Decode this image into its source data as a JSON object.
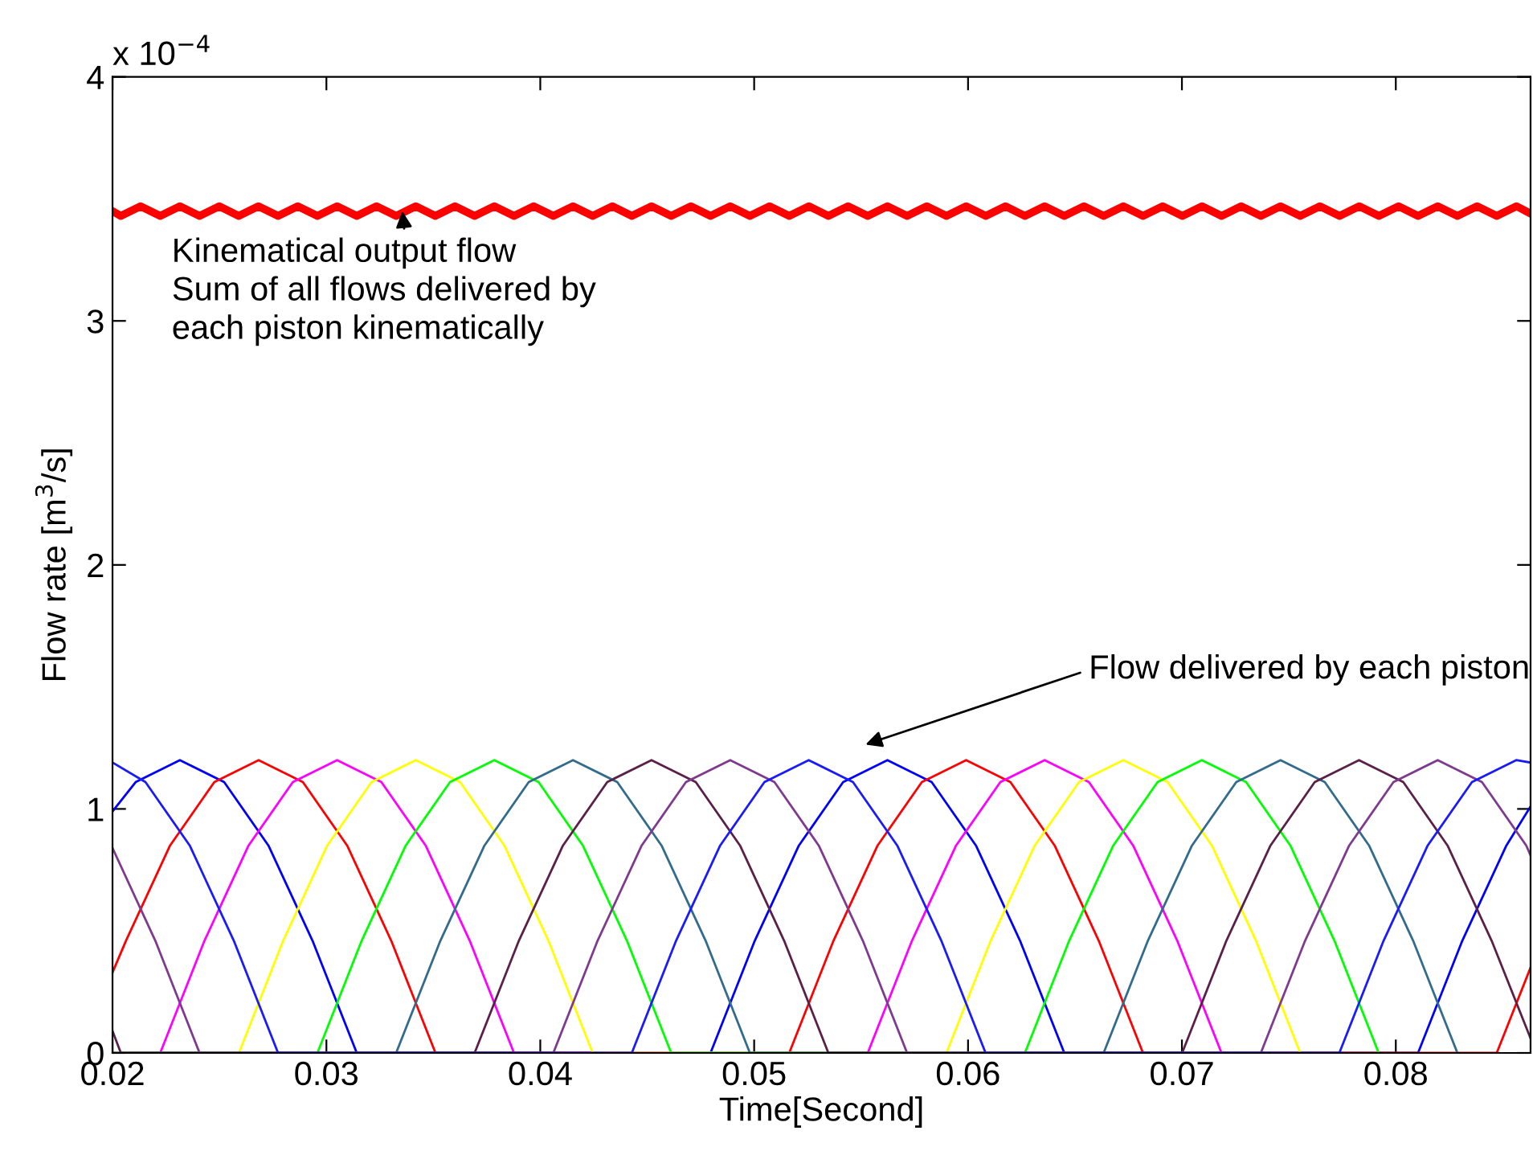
{
  "chart_data": {
    "type": "line",
    "xlabel": "Time[Second]",
    "ylabel": "Flow rate [m$^{3}$/s]",
    "xlim": [
      0.02,
      0.0863
    ],
    "xticks": [
      0.02,
      0.03,
      0.04,
      0.05,
      0.06,
      0.07,
      0.08
    ],
    "ylim": [
      0,
      4
    ],
    "yticks": [
      0,
      1,
      2,
      3,
      4
    ],
    "grid": false,
    "legend": false,
    "marker": "none",
    "line_style": "solid",
    "annotations": [
      "x 10$^{−4}$",
      {
        "text": "Kinematical output flow\nSum of all flows delivered by\neach piston kinematically",
        "x": 0.03355,
        "y": 3.45
      },
      "Flow delivered by each piston"
    ],
    "series": [
      {
        "color": "#ff0000",
        "x": [
          0.02,
          0.02039,
          0.02131,
          0.02223,
          0.02315,
          0.02407,
          0.02499,
          0.0259,
          0.02682,
          0.02774,
          0.02866,
          0.02958,
          0.0305,
          0.03142,
          0.03234,
          0.03326,
          0.03418,
          0.03509,
          0.03601,
          0.03693,
          0.03785,
          0.03877,
          0.03969,
          0.04061,
          0.04153,
          0.04245,
          0.04337,
          0.04428,
          0.0452,
          0.04612,
          0.04704,
          0.04796,
          0.04888,
          0.0498,
          0.05072,
          0.05164,
          0.05256,
          0.05347,
          0.05439,
          0.05531,
          0.05623,
          0.05715,
          0.05807,
          0.05899,
          0.05991,
          0.06083,
          0.06175,
          0.06266,
          0.06358,
          0.0645,
          0.06542,
          0.06634,
          0.06726,
          0.06818,
          0.0691,
          0.07002,
          0.07094,
          0.07185,
          0.07277,
          0.07369,
          0.07461,
          0.07553,
          0.07645,
          0.07737,
          0.07829,
          0.07921,
          0.08013,
          0.08104,
          0.08196,
          0.08288,
          0.0838,
          0.08472,
          0.08564,
          0.0863
        ],
        "values": [
          3.45,
          3.43,
          3.47,
          3.43,
          3.47,
          3.43,
          3.47,
          3.43,
          3.47,
          3.43,
          3.47,
          3.43,
          3.47,
          3.43,
          3.47,
          3.43,
          3.47,
          3.43,
          3.47,
          3.43,
          3.47,
          3.43,
          3.47,
          3.43,
          3.47,
          3.43,
          3.47,
          3.43,
          3.47,
          3.43,
          3.47,
          3.43,
          3.47,
          3.43,
          3.47,
          3.43,
          3.47,
          3.43,
          3.47,
          3.43,
          3.47,
          3.43,
          3.47,
          3.43,
          3.47,
          3.43,
          3.47,
          3.43,
          3.47,
          3.43,
          3.47,
          3.43,
          3.47,
          3.43,
          3.47,
          3.43,
          3.47,
          3.43,
          3.47,
          3.43,
          3.47,
          3.43,
          3.47,
          3.43,
          3.47,
          3.43,
          3.47,
          3.43,
          3.47,
          3.43,
          3.47,
          3.43,
          3.47,
          3.44
        ]
      },
      {
        "color": "#0000ff",
        "x": [
          0.02,
          0.02108,
          0.02315,
          0.02522,
          0.02729,
          0.02935,
          0.03142,
          0.04796,
          0.05003,
          0.05209,
          0.05416,
          0.05623,
          0.0583,
          0.06037,
          0.06243,
          0.0645,
          0.08104,
          0.08311,
          0.08517,
          0.0863
        ],
        "values": [
          0.99,
          1.11,
          1.2,
          1.11,
          0.85,
          0.46,
          0,
          0,
          0.46,
          0.85,
          1.11,
          1.2,
          1.11,
          0.85,
          0.46,
          0,
          0,
          0.46,
          0.85,
          1.01
        ]
      },
      {
        "color": "#ff0000",
        "x": [
          0.02,
          0.02063,
          0.02269,
          0.02476,
          0.02683,
          0.0289,
          0.03097,
          0.03303,
          0.0351,
          0.05164,
          0.05371,
          0.05577,
          0.05784,
          0.05991,
          0.06198,
          0.06405,
          0.06611,
          0.06818,
          0.08472,
          0.0863
        ],
        "values": [
          0.33,
          0.46,
          0.85,
          1.11,
          1.2,
          1.11,
          0.85,
          0.46,
          0,
          0,
          0.46,
          0.85,
          1.11,
          1.2,
          1.11,
          0.85,
          0.46,
          0,
          0,
          0.35
        ]
      },
      {
        "color": "#ff00ff",
        "x": [
          0.02,
          0.02223,
          0.0243,
          0.02636,
          0.02843,
          0.0305,
          0.03257,
          0.03464,
          0.0367,
          0.03877,
          0.05531,
          0.05738,
          0.05944,
          0.06151,
          0.06358,
          0.06565,
          0.06772,
          0.06978,
          0.07185
        ],
        "values": [
          0,
          0,
          0.46,
          0.85,
          1.11,
          1.2,
          1.11,
          0.85,
          0.46,
          0,
          0,
          0.46,
          0.85,
          1.11,
          1.2,
          1.11,
          0.85,
          0.46,
          0
        ]
      },
      {
        "color": "#ffff00",
        "x": [
          0.02,
          0.02591,
          0.02798,
          0.03004,
          0.03211,
          0.03418,
          0.03625,
          0.03832,
          0.04038,
          0.04245,
          0.05899,
          0.06106,
          0.06312,
          0.06519,
          0.06726,
          0.06933,
          0.0714,
          0.07346,
          0.07553
        ],
        "values": [
          0,
          0,
          0.46,
          0.85,
          1.11,
          1.2,
          1.11,
          0.85,
          0.46,
          0,
          0,
          0.46,
          0.85,
          1.11,
          1.2,
          1.11,
          0.85,
          0.46,
          0
        ]
      },
      {
        "color": "#00ff00",
        "x": [
          0.02,
          0.02958,
          0.03165,
          0.03371,
          0.03578,
          0.03785,
          0.03992,
          0.04199,
          0.04405,
          0.04612,
          0.06266,
          0.06473,
          0.06679,
          0.06886,
          0.07093,
          0.073,
          0.07507,
          0.07713,
          0.0792
        ],
        "values": [
          0,
          0,
          0.46,
          0.85,
          1.11,
          1.2,
          1.11,
          0.85,
          0.46,
          0,
          0,
          0.46,
          0.85,
          1.11,
          1.2,
          1.11,
          0.85,
          0.46,
          0
        ]
      },
      {
        "color": "#336b8c",
        "x": [
          0.02,
          0.03326,
          0.03533,
          0.03739,
          0.03946,
          0.04153,
          0.0436,
          0.04567,
          0.04773,
          0.0498,
          0.06634,
          0.06841,
          0.07047,
          0.07254,
          0.07461,
          0.07668,
          0.07875,
          0.08081,
          0.08288
        ],
        "values": [
          0,
          0,
          0.46,
          0.85,
          1.11,
          1.2,
          1.11,
          0.85,
          0.46,
          0,
          0,
          0.46,
          0.85,
          1.11,
          1.2,
          1.11,
          0.85,
          0.46,
          0
        ]
      },
      {
        "color": "#5a2048",
        "x": [
          0.02,
          0.02039,
          0.03693,
          0.039,
          0.04106,
          0.04313,
          0.0452,
          0.04727,
          0.04934,
          0.0514,
          0.05347,
          0.07001,
          0.07208,
          0.07414,
          0.07621,
          0.07828,
          0.08035,
          0.08242,
          0.08448,
          0.0863
        ],
        "values": [
          0.09,
          0,
          0,
          0.46,
          0.85,
          1.11,
          1.2,
          1.11,
          0.85,
          0.46,
          0,
          0,
          0.46,
          0.85,
          1.11,
          1.2,
          1.11,
          0.85,
          0.46,
          0.06
        ]
      },
      {
        "color": "#7e3a8e",
        "x": [
          0.02,
          0.022,
          0.02407,
          0.04061,
          0.04268,
          0.04474,
          0.04681,
          0.04888,
          0.05095,
          0.05302,
          0.05508,
          0.05715,
          0.07369,
          0.07576,
          0.07782,
          0.07989,
          0.08196,
          0.08403,
          0.0861,
          0.0863
        ],
        "values": [
          0.84,
          0.46,
          0,
          0,
          0.46,
          0.85,
          1.11,
          1.2,
          1.11,
          0.85,
          0.46,
          0,
          0,
          0.46,
          0.85,
          1.11,
          1.2,
          1.11,
          0.85,
          0.81
        ]
      },
      {
        "color": "#1a1aff",
        "x": [
          0.02,
          0.02154,
          0.02361,
          0.02567,
          0.02774,
          0.04428,
          0.04635,
          0.04841,
          0.05048,
          0.05255,
          0.05462,
          0.05669,
          0.05875,
          0.06082,
          0.07736,
          0.07943,
          0.08149,
          0.08356,
          0.08563,
          0.0863
        ],
        "values": [
          1.19,
          1.11,
          0.85,
          0.46,
          0,
          0,
          0.46,
          0.85,
          1.11,
          1.2,
          1.11,
          0.85,
          0.46,
          0,
          0,
          0.46,
          0.85,
          1.11,
          1.2,
          1.19
        ]
      }
    ]
  }
}
